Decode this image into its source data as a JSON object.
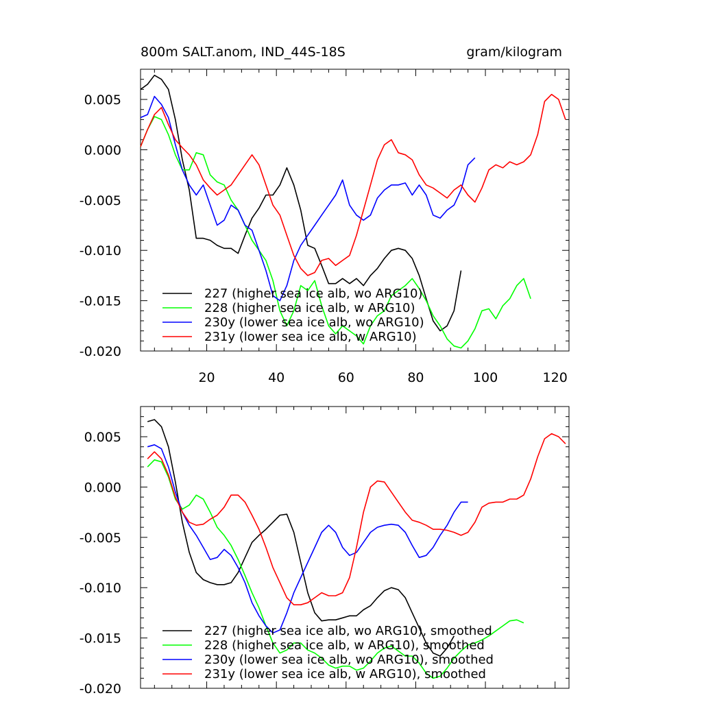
{
  "title_left": "800m SALT.anom, IND_44S-18S",
  "title_right": "gram/kilogram",
  "colors": {
    "227": "#000000",
    "228": "#00ff00",
    "230y": "#0000ff",
    "231y": "#ff0000"
  },
  "chart_data": [
    {
      "type": "line",
      "panel": "top",
      "xlim": [
        1,
        124
      ],
      "ylim": [
        -0.02,
        0.008
      ],
      "xticks": [
        20,
        40,
        60,
        80,
        100,
        120
      ],
      "yticks": [
        0.005,
        0.0,
        -0.005,
        -0.01,
        -0.015,
        -0.02
      ],
      "ytick_labels": [
        "0.005",
        "0.000",
        "-0.005",
        "-0.010",
        "-0.015",
        "-0.020"
      ],
      "xtick_labels": [
        "20",
        "40",
        "60",
        "80",
        "100",
        "120"
      ],
      "series": [
        {
          "name": "227 (higher sea ice alb, wo ARG10)",
          "color": "#000000",
          "x": [
            1,
            3,
            5,
            7,
            9,
            11,
            13,
            15,
            17,
            19,
            21,
            23,
            25,
            27,
            29,
            31,
            33,
            35,
            37,
            39,
            41,
            43,
            45,
            47,
            49,
            51,
            53,
            55,
            57,
            59,
            61,
            63,
            65,
            67,
            69,
            71,
            73,
            75,
            77,
            79,
            81,
            83,
            85,
            87,
            89,
            91,
            93
          ],
          "y": [
            0.006,
            0.0065,
            0.0074,
            0.007,
            0.006,
            0.003,
            -0.001,
            -0.004,
            -0.0088,
            -0.0088,
            -0.009,
            -0.0095,
            -0.0098,
            -0.0098,
            -0.0103,
            -0.0085,
            -0.0068,
            -0.0058,
            -0.0045,
            -0.0045,
            -0.0035,
            -0.0018,
            -0.0035,
            -0.006,
            -0.0095,
            -0.0098,
            -0.0115,
            -0.0133,
            -0.0133,
            -0.0128,
            -0.0133,
            -0.0128,
            -0.0135,
            -0.0125,
            -0.0118,
            -0.0108,
            -0.01,
            -0.0098,
            -0.01,
            -0.0108,
            -0.0125,
            -0.0148,
            -0.017,
            -0.018,
            -0.0175,
            -0.016,
            -0.012
          ]
        },
        {
          "name": "228 (higher sea ice alb, w ARG10)",
          "color": "#00ff00",
          "x": [
            1,
            3,
            5,
            7,
            9,
            11,
            13,
            15,
            17,
            19,
            21,
            23,
            25,
            27,
            29,
            31,
            33,
            35,
            37,
            39,
            41,
            43,
            45,
            47,
            49,
            51,
            53,
            55,
            57,
            59,
            61,
            63,
            65,
            67,
            69,
            71,
            73,
            75,
            77,
            79,
            81,
            83,
            85,
            87,
            89,
            91,
            93,
            95,
            97,
            99,
            101,
            103,
            105,
            107,
            109,
            111,
            113
          ],
          "y": [
            0.0003,
            0.002,
            0.0033,
            0.003,
            0.0015,
            -0.0005,
            -0.002,
            -0.002,
            -0.0003,
            -0.0005,
            -0.0025,
            -0.0032,
            -0.0035,
            -0.005,
            -0.006,
            -0.0075,
            -0.009,
            -0.01,
            -0.011,
            -0.013,
            -0.016,
            -0.0175,
            -0.016,
            -0.0135,
            -0.014,
            -0.013,
            -0.0155,
            -0.0175,
            -0.0183,
            -0.0175,
            -0.018,
            -0.0185,
            -0.0193,
            -0.0175,
            -0.0165,
            -0.016,
            -0.0145,
            -0.014,
            -0.0135,
            -0.0128,
            -0.0138,
            -0.015,
            -0.0165,
            -0.0175,
            -0.0188,
            -0.0195,
            -0.0197,
            -0.019,
            -0.0178,
            -0.016,
            -0.0158,
            -0.0168,
            -0.0155,
            -0.0148,
            -0.0135,
            -0.0128,
            -0.0148
          ]
        },
        {
          "name": "230y (lower sea ice alb, wo ARG10)",
          "color": "#0000ff",
          "x": [
            1,
            3,
            5,
            7,
            9,
            11,
            13,
            15,
            17,
            19,
            21,
            23,
            25,
            27,
            29,
            31,
            33,
            35,
            37,
            39,
            41,
            43,
            45,
            47,
            49,
            51,
            53,
            55,
            57,
            59,
            61,
            63,
            65,
            67,
            69,
            71,
            73,
            75,
            77,
            79,
            81,
            83,
            85,
            87,
            89,
            91,
            93,
            95,
            97
          ],
          "y": [
            0.0032,
            0.0035,
            0.0053,
            0.0045,
            0.0032,
            0.0005,
            -0.002,
            -0.0035,
            -0.0045,
            -0.0035,
            -0.0055,
            -0.0075,
            -0.007,
            -0.0055,
            -0.006,
            -0.0075,
            -0.008,
            -0.01,
            -0.012,
            -0.0145,
            -0.015,
            -0.0135,
            -0.011,
            -0.0095,
            -0.0085,
            -0.0075,
            -0.0065,
            -0.0055,
            -0.0045,
            -0.003,
            -0.0055,
            -0.0065,
            -0.007,
            -0.0065,
            -0.0048,
            -0.004,
            -0.0035,
            -0.0035,
            -0.0033,
            -0.0045,
            -0.0035,
            -0.0045,
            -0.0065,
            -0.0068,
            -0.006,
            -0.0055,
            -0.004,
            -0.0015,
            -0.0008
          ]
        },
        {
          "name": "231y (lower sea ice alb, w ARG10)",
          "color": "#ff0000",
          "x": [
            1,
            3,
            5,
            7,
            9,
            11,
            13,
            15,
            17,
            19,
            21,
            23,
            25,
            27,
            29,
            31,
            33,
            35,
            37,
            39,
            41,
            43,
            45,
            47,
            49,
            51,
            53,
            55,
            57,
            59,
            61,
            63,
            65,
            67,
            69,
            71,
            73,
            75,
            77,
            79,
            81,
            83,
            85,
            87,
            89,
            91,
            93,
            95,
            97,
            99,
            101,
            103,
            105,
            107,
            109,
            111,
            113,
            115,
            117,
            119,
            121,
            123
          ],
          "y": [
            0.0003,
            0.002,
            0.0035,
            0.0042,
            0.0025,
            0.001,
            0.0002,
            -0.0005,
            -0.0015,
            -0.003,
            -0.0038,
            -0.0045,
            -0.004,
            -0.0035,
            -0.0025,
            -0.0015,
            -0.0005,
            -0.0015,
            -0.0035,
            -0.0055,
            -0.0065,
            -0.0085,
            -0.0105,
            -0.0118,
            -0.0125,
            -0.0122,
            -0.011,
            -0.0108,
            -0.0115,
            -0.011,
            -0.0105,
            -0.0085,
            -0.006,
            -0.0035,
            -0.001,
            0.0005,
            0.001,
            -0.0003,
            -0.0005,
            -0.001,
            -0.0025,
            -0.0035,
            -0.0038,
            -0.0043,
            -0.0048,
            -0.004,
            -0.0035,
            -0.0045,
            -0.0052,
            -0.0038,
            -0.002,
            -0.0015,
            -0.0018,
            -0.0012,
            -0.0015,
            -0.0012,
            -0.0005,
            0.0015,
            0.0048,
            0.0055,
            0.005,
            0.003
          ]
        }
      ]
    },
    {
      "type": "line",
      "panel": "bottom",
      "xlim": [
        1,
        124
      ],
      "ylim": [
        -0.02,
        0.008
      ],
      "xticks": [
        20,
        40,
        60,
        80,
        100,
        120
      ],
      "yticks": [
        0.005,
        0.0,
        -0.005,
        -0.01,
        -0.015,
        -0.02
      ],
      "ytick_labels": [
        "0.005",
        "0.000",
        "-0.005",
        "-0.010",
        "-0.015",
        "-0.020"
      ],
      "series": [
        {
          "name": "227 (higher sea ice alb, wo ARG10), smoothed",
          "color": "#000000",
          "x": [
            3,
            5,
            7,
            9,
            11,
            13,
            15,
            17,
            19,
            21,
            23,
            25,
            27,
            29,
            31,
            33,
            35,
            37,
            39,
            41,
            43,
            45,
            47,
            49,
            51,
            53,
            55,
            57,
            59,
            61,
            63,
            65,
            67,
            69,
            71,
            73,
            75,
            77,
            79,
            81,
            83,
            85,
            87,
            89,
            91
          ],
          "y": [
            0.0065,
            0.0067,
            0.006,
            0.004,
            0.0005,
            -0.0035,
            -0.0065,
            -0.0085,
            -0.0092,
            -0.0095,
            -0.0097,
            -0.0097,
            -0.0095,
            -0.0085,
            -0.007,
            -0.0055,
            -0.0048,
            -0.0042,
            -0.0035,
            -0.0028,
            -0.0027,
            -0.0045,
            -0.0075,
            -0.0105,
            -0.0125,
            -0.0133,
            -0.0132,
            -0.0132,
            -0.013,
            -0.0128,
            -0.0128,
            -0.0122,
            -0.0118,
            -0.011,
            -0.0103,
            -0.01,
            -0.0102,
            -0.011,
            -0.0125,
            -0.014,
            -0.0155,
            -0.0165,
            -0.0168,
            -0.016,
            -0.0148
          ]
        },
        {
          "name": "228 (higher sea ice alb, w ARG10), smoothed",
          "color": "#00ff00",
          "x": [
            3,
            5,
            7,
            9,
            11,
            13,
            15,
            17,
            19,
            21,
            23,
            25,
            27,
            29,
            31,
            33,
            35,
            37,
            39,
            41,
            43,
            45,
            47,
            49,
            51,
            53,
            55,
            57,
            59,
            61,
            63,
            65,
            67,
            69,
            71,
            73,
            75,
            77,
            79,
            81,
            83,
            85,
            87,
            89,
            91,
            93,
            95,
            97,
            99,
            101,
            103,
            105,
            107,
            109,
            111
          ],
          "y": [
            0.002,
            0.0027,
            0.0025,
            0.001,
            -0.0012,
            -0.0022,
            -0.0018,
            -0.0008,
            -0.0012,
            -0.0025,
            -0.004,
            -0.0048,
            -0.0058,
            -0.0072,
            -0.0088,
            -0.0105,
            -0.012,
            -0.0138,
            -0.0155,
            -0.0165,
            -0.0162,
            -0.0155,
            -0.0155,
            -0.0162,
            -0.0165,
            -0.017,
            -0.0177,
            -0.018,
            -0.0178,
            -0.0178,
            -0.0182,
            -0.018,
            -0.0173,
            -0.0165,
            -0.016,
            -0.0158,
            -0.0163,
            -0.0168,
            -0.0168,
            -0.0175,
            -0.0185,
            -0.019,
            -0.0188,
            -0.018,
            -0.017,
            -0.0163,
            -0.0157,
            -0.0155,
            -0.0152,
            -0.0148,
            -0.0143,
            -0.0138,
            -0.0133,
            -0.0132,
            -0.0135
          ]
        },
        {
          "name": "230y (lower sea ice alb, wo ARG10), smoothed",
          "color": "#0000ff",
          "x": [
            3,
            5,
            7,
            9,
            11,
            13,
            15,
            17,
            19,
            21,
            23,
            25,
            27,
            29,
            31,
            33,
            35,
            37,
            39,
            41,
            43,
            45,
            47,
            49,
            51,
            53,
            55,
            57,
            59,
            61,
            63,
            65,
            67,
            69,
            71,
            73,
            75,
            77,
            79,
            81,
            83,
            85,
            87,
            89,
            91,
            93,
            95
          ],
          "y": [
            0.004,
            0.0042,
            0.0038,
            0.002,
            -0.0005,
            -0.0025,
            -0.0038,
            -0.0048,
            -0.006,
            -0.0072,
            -0.007,
            -0.0062,
            -0.0068,
            -0.008,
            -0.0095,
            -0.0115,
            -0.0128,
            -0.0138,
            -0.0145,
            -0.0142,
            -0.0125,
            -0.0105,
            -0.009,
            -0.0075,
            -0.006,
            -0.0045,
            -0.0038,
            -0.0045,
            -0.006,
            -0.0068,
            -0.0065,
            -0.0055,
            -0.0045,
            -0.004,
            -0.0038,
            -0.0037,
            -0.0038,
            -0.0045,
            -0.0058,
            -0.007,
            -0.0068,
            -0.006,
            -0.0048,
            -0.0038,
            -0.0025,
            -0.0015,
            -0.0015
          ]
        },
        {
          "name": "231y (lower sea ice alb, w ARG10), smoothed",
          "color": "#ff0000",
          "x": [
            3,
            5,
            7,
            9,
            11,
            13,
            15,
            17,
            19,
            21,
            23,
            25,
            27,
            29,
            31,
            33,
            35,
            37,
            39,
            41,
            43,
            45,
            47,
            49,
            51,
            53,
            55,
            57,
            59,
            61,
            63,
            65,
            67,
            69,
            71,
            73,
            75,
            77,
            79,
            81,
            83,
            85,
            87,
            89,
            91,
            93,
            95,
            97,
            99,
            101,
            103,
            105,
            107,
            109,
            111,
            113,
            115,
            117,
            119,
            121,
            123
          ],
          "y": [
            0.0028,
            0.0035,
            0.0028,
            0.0012,
            -0.001,
            -0.0025,
            -0.0035,
            -0.0038,
            -0.0037,
            -0.0032,
            -0.0028,
            -0.002,
            -0.0008,
            -0.0008,
            -0.0015,
            -0.0028,
            -0.0042,
            -0.006,
            -0.008,
            -0.0095,
            -0.011,
            -0.0117,
            -0.0117,
            -0.0115,
            -0.011,
            -0.0105,
            -0.0108,
            -0.0108,
            -0.0105,
            -0.009,
            -0.006,
            -0.0025,
            0.0,
            0.0006,
            0.0005,
            -0.0005,
            -0.0015,
            -0.0025,
            -0.0033,
            -0.0035,
            -0.0038,
            -0.0042,
            -0.0042,
            -0.0043,
            -0.0045,
            -0.0048,
            -0.0045,
            -0.0035,
            -0.002,
            -0.0016,
            -0.0015,
            -0.0015,
            -0.0012,
            -0.0012,
            -0.0008,
            0.0008,
            0.003,
            0.0048,
            0.0053,
            0.005,
            0.0043
          ]
        }
      ]
    }
  ]
}
